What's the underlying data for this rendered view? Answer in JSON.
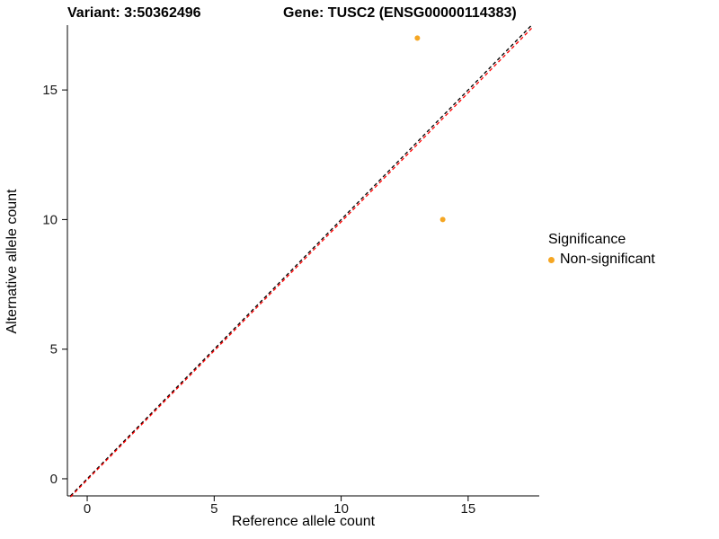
{
  "chart_data": {
    "type": "scatter",
    "title_left": "Variant: 3:50362496",
    "title_right": "Gene: TUSC2 (ENSG00000114383)",
    "xlabel": "Reference allele count",
    "ylabel": "Alternative allele count",
    "xlim": [
      -0.78,
      17.8
    ],
    "ylim": [
      -0.66,
      17.5
    ],
    "xticks": [
      0,
      5,
      10,
      15
    ],
    "yticks": [
      0,
      5,
      10,
      15
    ],
    "grid": false,
    "points": [
      {
        "x": 13,
        "y": 17
      },
      {
        "x": 14,
        "y": 10
      }
    ],
    "point_color": "#F5A623",
    "lines": [
      {
        "name": "identity",
        "x1": -0.66,
        "y1": -0.66,
        "x2": 17.5,
        "y2": 17.5,
        "color": "#000000",
        "dash": "4,3"
      },
      {
        "name": "fit",
        "x1": -0.66,
        "y1": -0.7,
        "x2": 17.5,
        "y2": 17.38,
        "color": "#FF0000",
        "dash": "4,3"
      }
    ],
    "legend": {
      "title": "Significance",
      "position": "right",
      "items": [
        {
          "label": "Non-significant",
          "color": "#F5A623"
        }
      ]
    }
  }
}
